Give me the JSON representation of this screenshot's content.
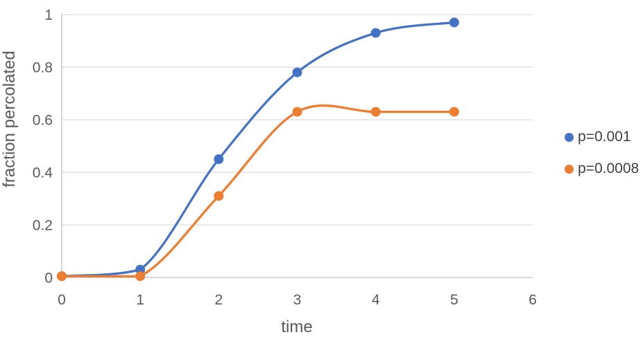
{
  "chart_data": {
    "type": "line",
    "title": "",
    "xlabel": "time",
    "ylabel": "fraction percolated",
    "x": [
      0,
      1,
      2,
      3,
      4,
      5
    ],
    "series": [
      {
        "name": "p=0.001",
        "color": "#4472C4",
        "values": [
          0.005,
          0.03,
          0.45,
          0.78,
          0.93,
          0.97
        ]
      },
      {
        "name": "p=0.0008",
        "color": "#ED7D31",
        "values": [
          0.005,
          0.005,
          0.31,
          0.63,
          0.63,
          0.63
        ]
      }
    ],
    "xlim": [
      0,
      6
    ],
    "ylim": [
      0,
      1
    ],
    "x_ticks": [
      0,
      1,
      2,
      3,
      4,
      5,
      6
    ],
    "x_tick_labels": [
      "0",
      "1",
      "2",
      "3",
      "4",
      "5",
      "6"
    ],
    "y_ticks": [
      0,
      0.2,
      0.4,
      0.6,
      0.8,
      1
    ],
    "y_tick_labels": [
      "0",
      "0.2",
      "0.4",
      "0.6",
      "0.8",
      "1"
    ],
    "grid": "horizontal",
    "legend_position": "right",
    "smooth": true,
    "markers": "circle"
  },
  "colors": {
    "background": "#FFFFFF",
    "gridline": "#D9D9D9",
    "axis_line": "#BFBFBF",
    "tick_text": "#595959",
    "legend_text": "#404040"
  }
}
